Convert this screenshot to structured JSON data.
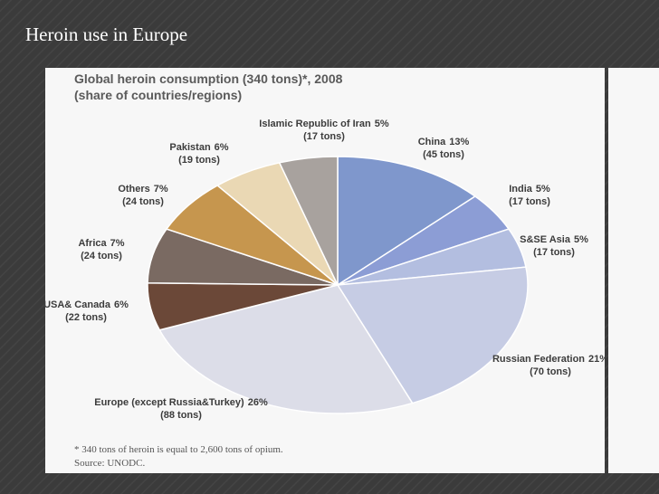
{
  "slide_title": "Heroin use in Europe",
  "chart_data": {
    "type": "pie",
    "title": "Global heroin consumption (340 tons)*, 2008",
    "subtitle": "(share of countries/regions)",
    "categories": [
      "China",
      "India",
      "S&SE Asia",
      "Russian Federation",
      "Europe (except Russia&Turkey)",
      "USA& Canada",
      "Africa",
      "Others",
      "Pakistan",
      "Islamic Republic of Iran"
    ],
    "values": [
      13,
      5,
      5,
      21,
      26,
      6,
      7,
      7,
      6,
      5
    ],
    "value_labels": [
      "13%",
      "5%",
      "5%",
      "21%",
      "26%",
      "6%",
      "7%",
      "7%",
      "6%",
      "5%"
    ],
    "tons_labels": [
      "(45 tons)",
      "(17 tons)",
      "(17 tons)",
      "(70 tons)",
      "(88 tons)",
      "(22 tons)",
      "(24 tons)",
      "(24 tons)",
      "(19 tons)",
      "(17 tons)"
    ],
    "colors": [
      "#7f97cc",
      "#8c9dd5",
      "#b3bee0",
      "#c6cce4",
      "#dcdde8",
      "#6b4838",
      "#7a6a62",
      "#c6964e",
      "#ead8b4",
      "#a8a29e"
    ],
    "footnote": "* 340 tons of heroin is equal to 2,600 tons of opium.",
    "source": "Source: UNODC."
  }
}
